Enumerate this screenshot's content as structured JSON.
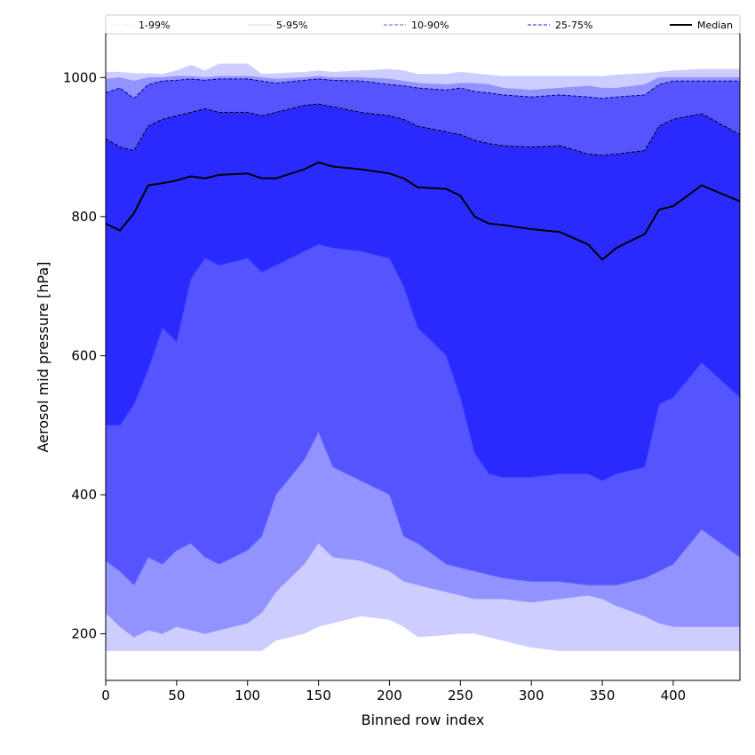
{
  "chart_data": {
    "type": "area",
    "xlabel": "Binned row index",
    "ylabel": "Aerosol mid pressure [hPa]",
    "xlim": [
      0,
      447
    ],
    "ylim": [
      133,
      1063
    ],
    "xticks": [
      0,
      50,
      100,
      150,
      200,
      250,
      300,
      350,
      400
    ],
    "yticks": [
      200,
      400,
      600,
      800,
      1000
    ],
    "grid": false,
    "legend_position": "top",
    "legend": [
      {
        "label": "1-99%",
        "color": "#d8d8ff",
        "dash": "dotted"
      },
      {
        "label": "5-95%",
        "color": "#9fa0ff",
        "dash": "dotted"
      },
      {
        "label": "10-90%",
        "color": "#7a7cff",
        "dash": "dashed"
      },
      {
        "label": "25-75%",
        "color": "#4747ff",
        "dash": "dashed"
      },
      {
        "label": "Median",
        "color": "#000000",
        "dash": "solid"
      }
    ],
    "fill_colors": {
      "band_1_99": "#cdcdff",
      "band_5_95": "#9393ff",
      "band_10_90": "#5555ff",
      "band_25_75": "#2a2aff"
    },
    "x": [
      0,
      10,
      20,
      30,
      40,
      50,
      60,
      70,
      80,
      100,
      110,
      120,
      140,
      150,
      160,
      180,
      200,
      210,
      220,
      240,
      250,
      260,
      270,
      280,
      300,
      320,
      340,
      350,
      360,
      380,
      390,
      400,
      420,
      447
    ],
    "series": [
      {
        "key": "p1",
        "values": [
          175,
          175,
          175,
          175,
          175,
          175,
          175,
          175,
          175,
          175,
          175,
          190,
          200,
          210,
          215,
          225,
          220,
          210,
          195,
          198,
          200,
          200,
          195,
          190,
          180,
          175,
          175,
          175,
          175,
          175,
          175,
          175,
          175,
          175
        ]
      },
      {
        "key": "p5",
        "values": [
          230,
          210,
          195,
          205,
          200,
          210,
          205,
          200,
          205,
          215,
          230,
          260,
          300,
          330,
          310,
          305,
          290,
          275,
          270,
          260,
          255,
          250,
          250,
          250,
          245,
          250,
          255,
          250,
          240,
          225,
          215,
          210,
          210,
          210
        ]
      },
      {
        "key": "p10",
        "values": [
          305,
          290,
          270,
          310,
          300,
          320,
          330,
          310,
          300,
          320,
          340,
          400,
          450,
          490,
          440,
          420,
          400,
          340,
          330,
          300,
          295,
          290,
          285,
          280,
          275,
          275,
          270,
          270,
          270,
          280,
          290,
          300,
          350,
          310
        ]
      },
      {
        "key": "p25",
        "values": [
          500,
          500,
          530,
          580,
          640,
          620,
          710,
          740,
          730,
          740,
          720,
          730,
          750,
          760,
          755,
          750,
          740,
          700,
          640,
          600,
          540,
          460,
          430,
          425,
          425,
          430,
          430,
          420,
          430,
          440,
          530,
          540,
          590,
          540
        ]
      },
      {
        "key": "p50",
        "values": [
          790,
          780,
          805,
          845,
          848,
          852,
          858,
          855,
          860,
          862,
          855,
          855,
          868,
          878,
          872,
          868,
          862,
          855,
          842,
          840,
          830,
          800,
          790,
          788,
          782,
          778,
          760,
          738,
          755,
          775,
          810,
          815,
          845,
          822
        ]
      },
      {
        "key": "p75",
        "values": [
          912,
          900,
          895,
          930,
          940,
          945,
          950,
          955,
          950,
          950,
          945,
          950,
          960,
          962,
          958,
          950,
          945,
          940,
          930,
          922,
          918,
          910,
          905,
          902,
          900,
          902,
          890,
          888,
          890,
          895,
          930,
          940,
          948,
          918
        ]
      },
      {
        "key": "p90",
        "values": [
          978,
          985,
          970,
          990,
          995,
          996,
          998,
          996,
          998,
          998,
          995,
          992,
          996,
          998,
          996,
          995,
          990,
          988,
          985,
          982,
          985,
          980,
          978,
          975,
          972,
          975,
          972,
          970,
          972,
          975,
          990,
          995,
          995,
          995
        ]
      },
      {
        "key": "p95",
        "values": [
          998,
          1000,
          995,
          1000,
          1000,
          1002,
          1002,
          1000,
          1002,
          1002,
          1000,
          998,
          1000,
          1002,
          1000,
          1000,
          998,
          995,
          992,
          990,
          992,
          992,
          990,
          985,
          982,
          985,
          988,
          985,
          985,
          990,
          1000,
          1000,
          1000,
          1000
        ]
      },
      {
        "key": "p99",
        "values": [
          1008,
          1008,
          1006,
          1006,
          1005,
          1010,
          1018,
          1010,
          1020,
          1020,
          1005,
          1006,
          1008,
          1010,
          1008,
          1010,
          1012,
          1010,
          1005,
          1005,
          1008,
          1006,
          1004,
          1002,
          1002,
          1002,
          1002,
          1002,
          1004,
          1006,
          1008,
          1010,
          1012,
          1012
        ]
      }
    ]
  }
}
